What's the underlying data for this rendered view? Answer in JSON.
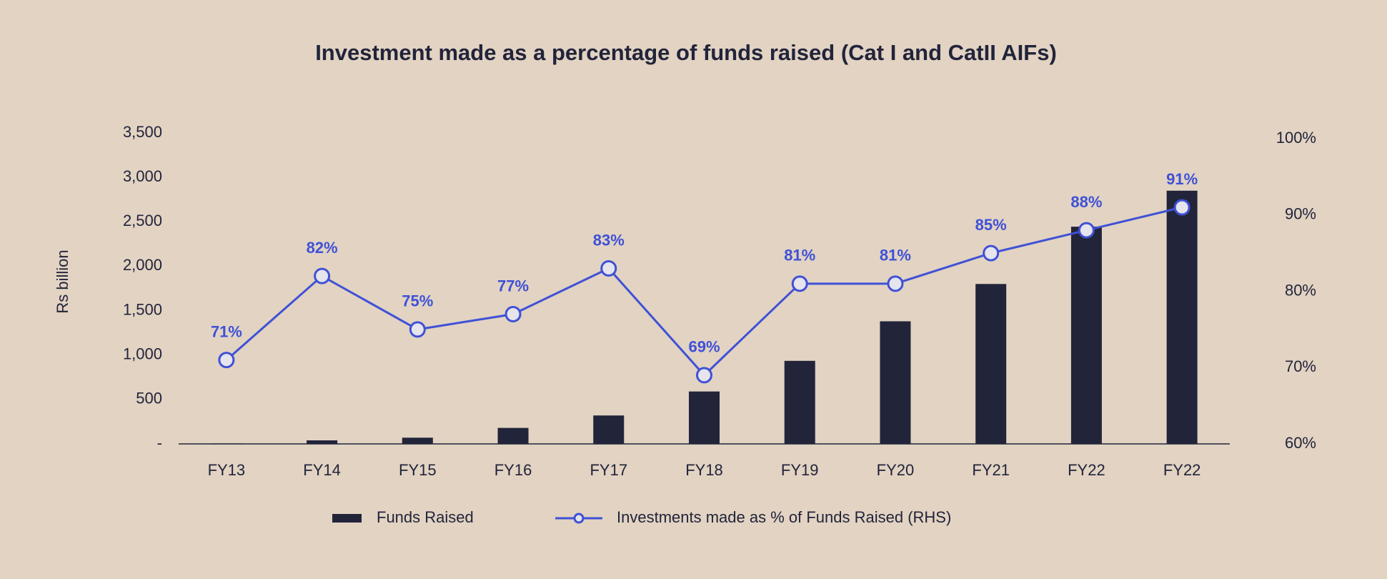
{
  "chart_data": {
    "type": "bar",
    "title": "Investment made as a percentage of funds raised (Cat I and CatII AIFs)",
    "y_label": "Rs billion",
    "categories": [
      "FY13",
      "FY14",
      "FY15",
      "FY16",
      "FY17",
      "FY18",
      "FY19",
      "FY20",
      "FY21",
      "FY22",
      "FY22"
    ],
    "series": [
      {
        "name": "Funds Raised",
        "type": "bar",
        "color": "#22243a",
        "values": [
          5,
          40,
          70,
          180,
          320,
          590,
          935,
          1380,
          1800,
          2445,
          2850
        ]
      },
      {
        "name": "Investments made as % of Funds Raised (RHS)",
        "type": "line",
        "axis": "y2",
        "color": "#3f51d6",
        "values": [
          71,
          82,
          75,
          77,
          83,
          69,
          81,
          81,
          85,
          88,
          91
        ],
        "value_labels": [
          "71%",
          "82%",
          "75%",
          "77%",
          "83%",
          "69%",
          "81%",
          "81%",
          "85%",
          "88%",
          "91%"
        ]
      }
    ],
    "ylim": [
      0,
      3500
    ],
    "yticks": [
      {
        "value": 0,
        "label": "-"
      },
      500,
      {
        "value": 1000,
        "label": "1,000"
      },
      {
        "value": 1500,
        "label": "1,500"
      },
      {
        "value": 2000,
        "label": "2,000"
      },
      {
        "value": 2500,
        "label": "2,500"
      },
      {
        "value": 3000,
        "label": "3,000"
      },
      {
        "value": 3500,
        "label": "3,500"
      }
    ],
    "y2lim": [
      60,
      100
    ],
    "y2ticks": [
      {
        "value": 60,
        "label": "60%"
      },
      {
        "value": 70,
        "label": "70%"
      },
      {
        "value": 80,
        "label": "80%"
      },
      {
        "value": 90,
        "label": "90%"
      },
      {
        "value": 100,
        "label": "100%"
      }
    ],
    "grid": false,
    "legend": "bottom"
  }
}
